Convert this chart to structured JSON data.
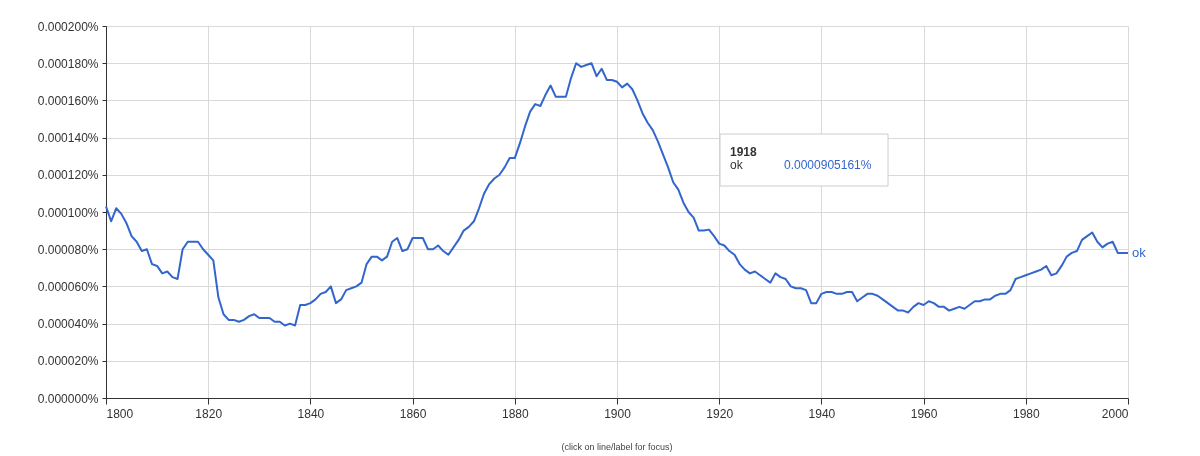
{
  "chart_data": {
    "type": "line",
    "x": [
      1800,
      1801,
      1802,
      1803,
      1804,
      1805,
      1806,
      1807,
      1808,
      1809,
      1810,
      1811,
      1812,
      1813,
      1814,
      1815,
      1816,
      1817,
      1818,
      1819,
      1820,
      1821,
      1822,
      1823,
      1824,
      1825,
      1826,
      1827,
      1828,
      1829,
      1830,
      1831,
      1832,
      1833,
      1834,
      1835,
      1836,
      1837,
      1838,
      1839,
      1840,
      1841,
      1842,
      1843,
      1844,
      1845,
      1846,
      1847,
      1848,
      1849,
      1850,
      1851,
      1852,
      1853,
      1854,
      1855,
      1856,
      1857,
      1858,
      1859,
      1860,
      1861,
      1862,
      1863,
      1864,
      1865,
      1866,
      1867,
      1868,
      1869,
      1870,
      1871,
      1872,
      1873,
      1874,
      1875,
      1876,
      1877,
      1878,
      1879,
      1880,
      1881,
      1882,
      1883,
      1884,
      1885,
      1886,
      1887,
      1888,
      1889,
      1890,
      1891,
      1892,
      1893,
      1894,
      1895,
      1896,
      1897,
      1898,
      1899,
      1900,
      1901,
      1902,
      1903,
      1904,
      1905,
      1906,
      1907,
      1908,
      1909,
      1910,
      1911,
      1912,
      1913,
      1914,
      1915,
      1916,
      1917,
      1918,
      1919,
      1920,
      1921,
      1922,
      1923,
      1924,
      1925,
      1926,
      1927,
      1928,
      1929,
      1930,
      1931,
      1932,
      1933,
      1934,
      1935,
      1936,
      1937,
      1938,
      1939,
      1940,
      1941,
      1942,
      1943,
      1944,
      1945,
      1946,
      1947,
      1948,
      1949,
      1950,
      1951,
      1952,
      1953,
      1954,
      1955,
      1956,
      1957,
      1958,
      1959,
      1960,
      1961,
      1962,
      1963,
      1964,
      1965,
      1966,
      1967,
      1968,
      1969,
      1970,
      1971,
      1972,
      1973,
      1974,
      1975,
      1976,
      1977,
      1978,
      1979,
      1980,
      1981,
      1982,
      1983,
      1984,
      1985,
      1986,
      1987,
      1988,
      1989,
      1990,
      1991,
      1992,
      1993,
      1994,
      1995,
      1996,
      1997,
      1998,
      1999,
      2000
    ],
    "series": [
      {
        "name": "ok",
        "color": "#3366cc",
        "values": [
          0.000103,
          9.5e-05,
          0.000102,
          9.9e-05,
          9.4e-05,
          8.7e-05,
          8.4e-05,
          7.9e-05,
          8e-05,
          7.2e-05,
          7.1e-05,
          6.7e-05,
          6.8e-05,
          6.5e-05,
          6.4e-05,
          8e-05,
          8.4e-05,
          8.4e-05,
          8.4e-05,
          8e-05,
          7.7e-05,
          7.4e-05,
          5.4e-05,
          4.5e-05,
          4.2e-05,
          4.2e-05,
          4.1e-05,
          4.2e-05,
          4.4e-05,
          4.5e-05,
          4.3e-05,
          4.3e-05,
          4.3e-05,
          4.1e-05,
          4.1e-05,
          3.9e-05,
          4e-05,
          3.9e-05,
          5e-05,
          5e-05,
          5.1e-05,
          5.3e-05,
          5.6e-05,
          5.7e-05,
          6e-05,
          5.1e-05,
          5.3e-05,
          5.8e-05,
          5.9e-05,
          6e-05,
          6.2e-05,
          7.2e-05,
          7.6e-05,
          7.6e-05,
          7.4e-05,
          7.6e-05,
          8.4e-05,
          8.6e-05,
          7.9e-05,
          8e-05,
          8.6e-05,
          8.6e-05,
          8.6e-05,
          8e-05,
          8e-05,
          8.2e-05,
          7.9e-05,
          7.7e-05,
          8.1e-05,
          8.5e-05,
          9e-05,
          9.2e-05,
          9.5e-05,
          0.000102,
          0.00011,
          0.000115,
          0.000118,
          0.00012,
          0.000124,
          0.000129,
          0.000129,
          0.000137,
          0.000146,
          0.000154,
          0.000158,
          0.000157,
          0.000163,
          0.000168,
          0.000162,
          0.000162,
          0.000162,
          0.000172,
          0.00018,
          0.000178,
          0.000179,
          0.00018,
          0.000173,
          0.000177,
          0.000171,
          0.000171,
          0.00017,
          0.000167,
          0.000169,
          0.000166,
          0.00016,
          0.000153,
          0.000148,
          0.000144,
          0.000138,
          0.000131,
          0.000124,
          0.000116,
          0.000112,
          0.000105,
          0.0001,
          9.7e-05,
          9e-05,
          9e-05,
          9.05161e-05,
          8.7e-05,
          8.3e-05,
          8.2e-05,
          7.9e-05,
          7.7e-05,
          7.2e-05,
          6.9e-05,
          6.7e-05,
          6.8e-05,
          6.6e-05,
          6.4e-05,
          6.2e-05,
          6.7e-05,
          6.5e-05,
          6.4e-05,
          6e-05,
          5.9e-05,
          5.9e-05,
          5.8e-05,
          5.1e-05,
          5.1e-05,
          5.6e-05,
          5.7e-05,
          5.7e-05,
          5.6e-05,
          5.6e-05,
          5.7e-05,
          5.7e-05,
          5.2e-05,
          5.4e-05,
          5.6e-05,
          5.6e-05,
          5.5e-05,
          5.3e-05,
          5.1e-05,
          4.9e-05,
          4.7e-05,
          4.7e-05,
          4.6e-05,
          4.9e-05,
          5.1e-05,
          5e-05,
          5.2e-05,
          5.1e-05,
          4.9e-05,
          4.9e-05,
          4.7e-05,
          4.8e-05,
          4.9e-05,
          4.8e-05,
          5e-05,
          5.2e-05,
          5.2e-05,
          5.3e-05,
          5.3e-05,
          5.5e-05,
          5.6e-05,
          5.6e-05,
          5.8e-05,
          6.4e-05,
          6.5e-05,
          6.6e-05,
          6.7e-05,
          6.8e-05,
          6.9e-05,
          7.1e-05,
          6.6e-05,
          6.7e-05,
          7.1e-05,
          7.6e-05,
          7.8e-05,
          7.9e-05,
          8.5e-05,
          8.7e-05,
          8.9e-05,
          8.4e-05,
          8.1e-05,
          8.3e-05,
          8.4e-05,
          7.8e-05,
          7.8e-05,
          7.8e-05
        ]
      }
    ],
    "xlim": [
      1800,
      2000
    ],
    "xticks": [
      1800,
      1820,
      1840,
      1860,
      1880,
      1900,
      1920,
      1940,
      1960,
      1980,
      2000
    ],
    "ylim": [
      0,
      0.0002
    ],
    "yticks": [
      {
        "value": 0,
        "label": "0.000000%"
      },
      {
        "value": 2e-05,
        "label": "0.000020%"
      },
      {
        "value": 4e-05,
        "label": "0.000040%"
      },
      {
        "value": 6e-05,
        "label": "0.000060%"
      },
      {
        "value": 8e-05,
        "label": "0.000080%"
      },
      {
        "value": 0.0001,
        "label": "0.000100%"
      },
      {
        "value": 0.00012,
        "label": "0.000120%"
      },
      {
        "value": 0.00014,
        "label": "0.000140%"
      },
      {
        "value": 0.00016,
        "label": "0.000160%"
      },
      {
        "value": 0.00018,
        "label": "0.000180%"
      },
      {
        "value": 0.0002,
        "label": "0.000200%"
      }
    ],
    "grid": true,
    "annotations": [
      "1918",
      "ok",
      "0.0000905161%",
      "(click on line/label for focus)"
    ]
  }
}
